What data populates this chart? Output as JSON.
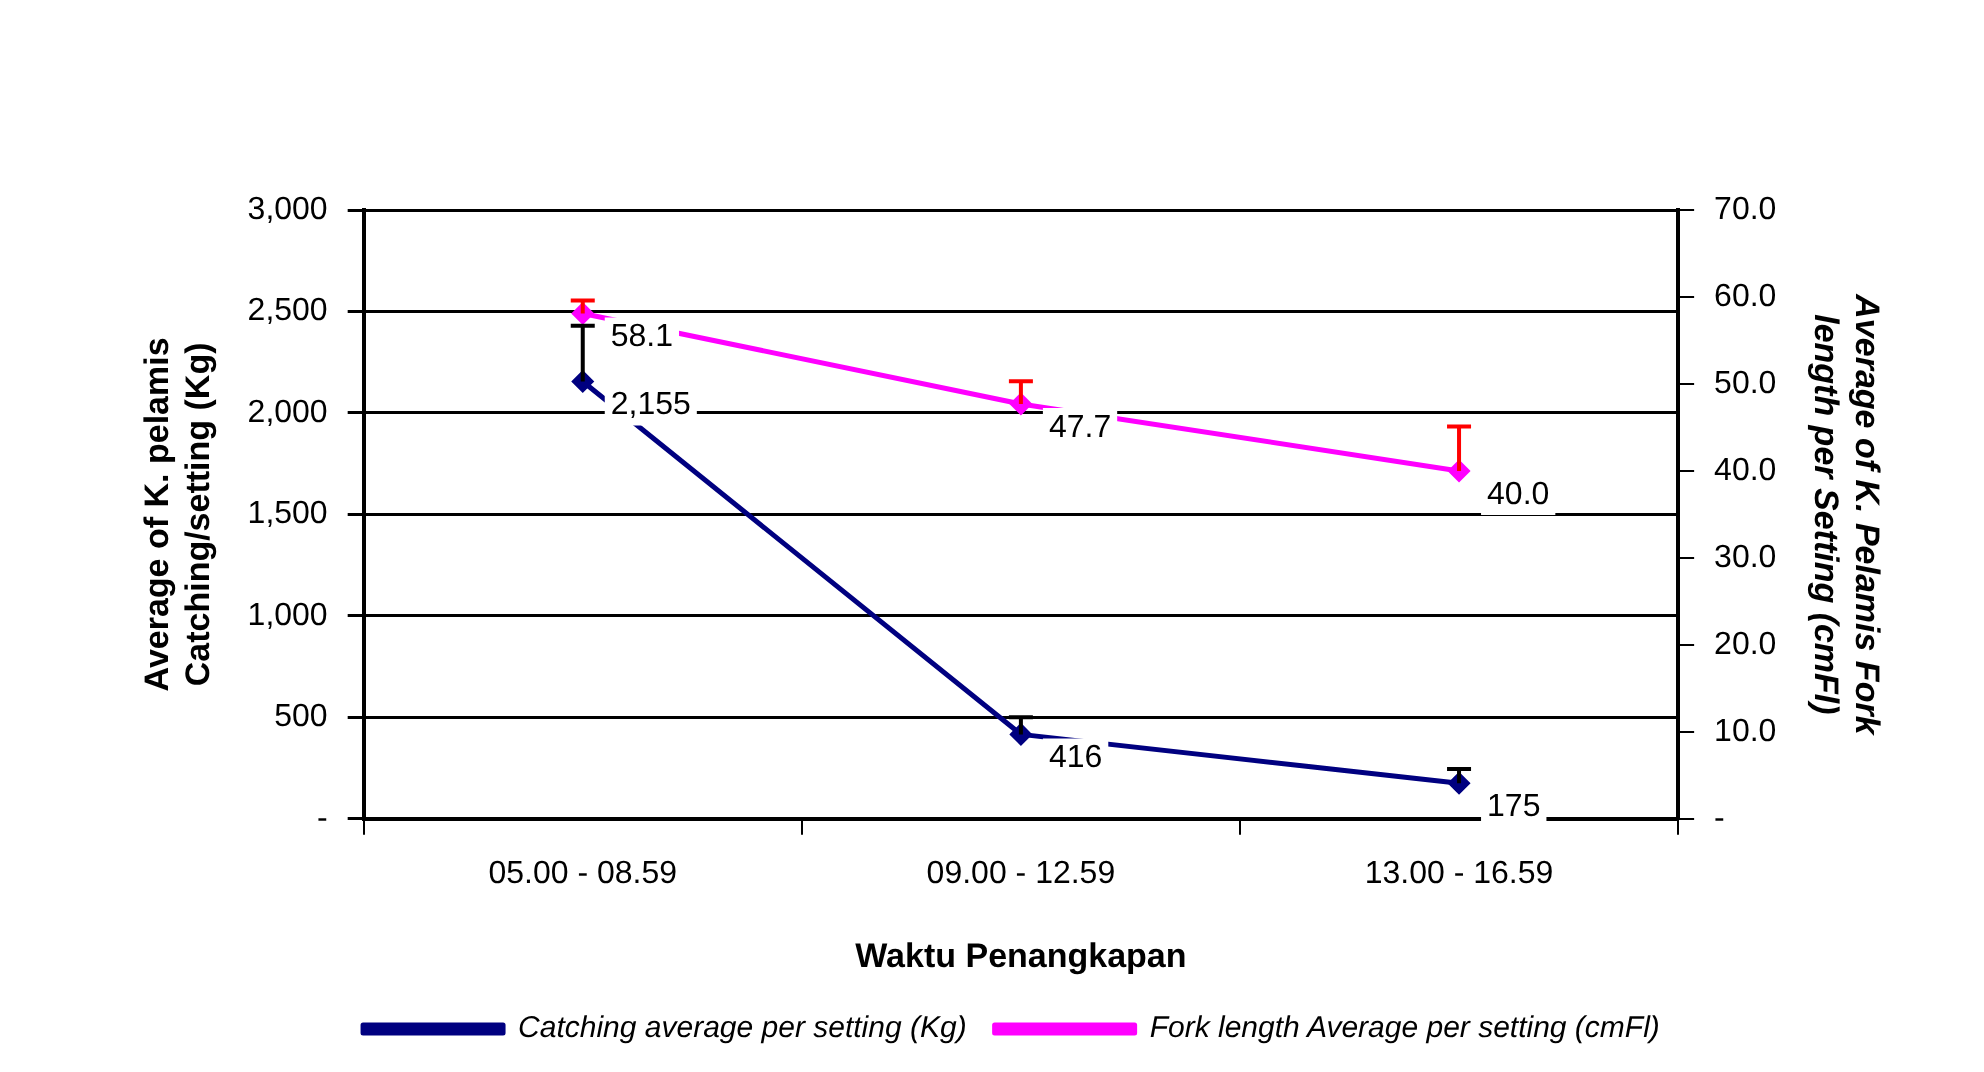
{
  "chart_data": {
    "type": "line",
    "xlabel": "Waktu Penangkapan",
    "ylabel": "Average of K. pelamis Catching/setting (Kg)",
    "y2label": "Average of K. Pelamis Fork length per Setting (cmFl)",
    "categories": [
      "05.00 - 08.59",
      "09.00 - 12.59",
      "13.00 - 16.59"
    ],
    "series": [
      {
        "name": "Catching average per setting (Kg)",
        "color": "#000080",
        "values": [
          2155,
          416,
          175
        ],
        "errors": [
          [
            2155,
            2430
          ],
          [
            416,
            500
          ],
          [
            175,
            245
          ]
        ],
        "value_labels": [
          "2,155",
          "416",
          "175"
        ]
      },
      {
        "name": "Fork length Average per setting (cmFl)",
        "color": "#ff00ff",
        "axis": "y2",
        "values": [
          58.1,
          47.7,
          40.0
        ],
        "errors": [
          [
            58.1,
            59.6
          ],
          [
            47.7,
            50.3
          ],
          [
            40.0,
            45.1
          ]
        ],
        "value_labels": [
          "58.1",
          "47.7",
          "40.0"
        ]
      }
    ],
    "ylim": [
      0,
      3000
    ],
    "yticks": [
      {
        "value": 0,
        "label": "-"
      },
      {
        "value": 500,
        "label": "500"
      },
      {
        "value": 1000,
        "label": "1,000"
      },
      {
        "value": 1500,
        "label": "1,500"
      },
      {
        "value": 2000,
        "label": "2,000"
      },
      {
        "value": 2500,
        "label": "2,500"
      },
      {
        "value": 3000,
        "label": "3,000"
      }
    ],
    "y2lim": [
      0,
      70
    ],
    "y2ticks": [
      {
        "value": 0,
        "label": "-"
      },
      {
        "value": 10,
        "label": "10.0"
      },
      {
        "value": 20,
        "label": "20.0"
      },
      {
        "value": 30,
        "label": "30.0"
      },
      {
        "value": 40,
        "label": "40.0"
      },
      {
        "value": 50,
        "label": "50.0"
      },
      {
        "value": 60,
        "label": "60.0"
      },
      {
        "value": 70,
        "label": "70.0"
      }
    ],
    "grid": "y",
    "legend": "bottom",
    "marker": "diamond",
    "line_style": "solid"
  }
}
